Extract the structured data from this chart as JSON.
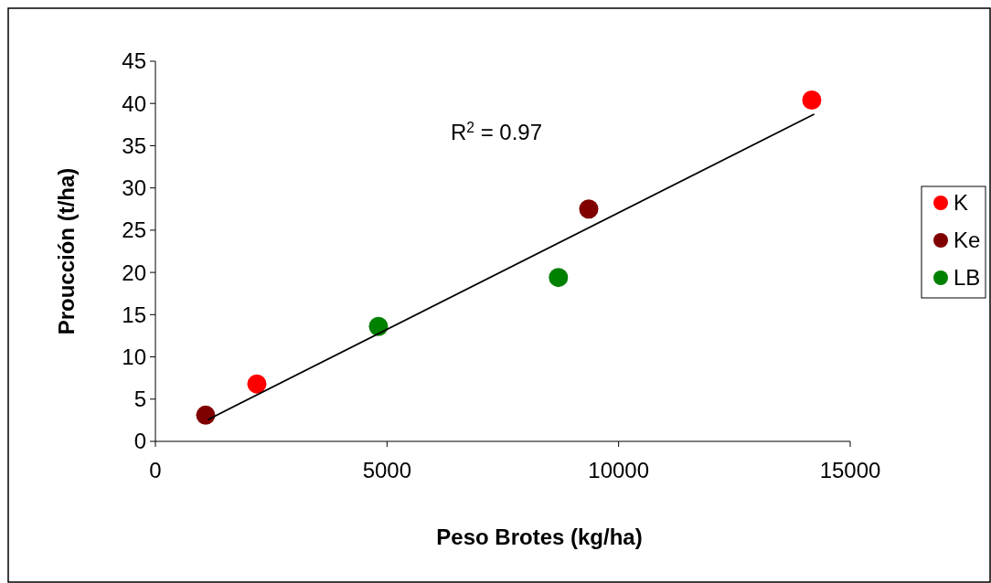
{
  "chart_data": {
    "type": "scatter",
    "xlabel": "Peso Brotes (kg/ha)",
    "ylabel": "Proucción (t/ha)",
    "xlim": [
      0,
      15000
    ],
    "xticks": [
      0,
      5000,
      10000,
      15000
    ],
    "ylim": [
      0,
      45
    ],
    "yticks": [
      0,
      5,
      10,
      15,
      20,
      25,
      30,
      35,
      40,
      45
    ],
    "grid": false,
    "legend": "right",
    "marker": "circle",
    "annotations": [
      "R$^{2}$ = 0.97"
    ],
    "series": [
      {
        "name": "K",
        "color": "#ff0000",
        "x": [
          2190,
          14170
        ],
        "values": [
          6.8,
          40.4
        ]
      },
      {
        "name": "Ke",
        "color": "#800000",
        "x": [
          1085,
          9355
        ],
        "values": [
          3.1,
          27.5
        ]
      },
      {
        "name": "LB",
        "color": "#008000",
        "x": [
          4815,
          8700
        ],
        "values": [
          13.6,
          19.4
        ]
      },
      {
        "type": "line",
        "color": "#000000",
        "x": [
          1145,
          14210
        ],
        "values": [
          2.6,
          38.7
        ],
        "line_style": "solid",
        "marker": "none"
      }
    ]
  }
}
